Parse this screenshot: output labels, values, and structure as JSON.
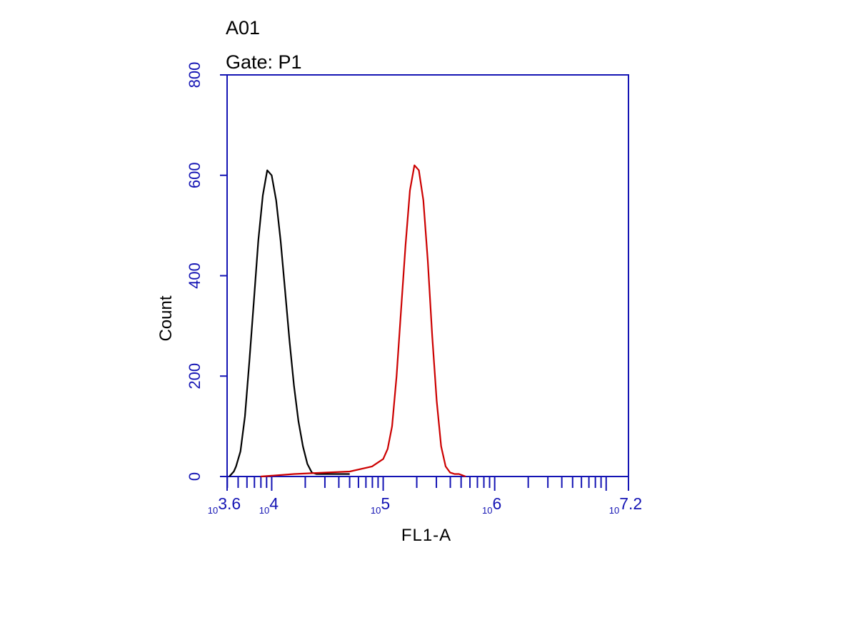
{
  "chart_data": {
    "type": "line",
    "title": "A01",
    "subtitle": "Gate: P1",
    "xlabel": "FL1-A",
    "ylabel": "Count",
    "xscale": "log10",
    "xlim": [
      3.6,
      7.2
    ],
    "ylim": [
      0,
      800
    ],
    "yticks": [
      "0",
      "200",
      "400",
      "600",
      "800"
    ],
    "xtick_labels": [
      {
        "exp": 3.6,
        "base": "10",
        "power": "3.6"
      },
      {
        "exp": 4,
        "base": "10",
        "power": "4"
      },
      {
        "exp": 5,
        "base": "10",
        "power": "5"
      },
      {
        "exp": 6,
        "base": "10",
        "power": "6"
      },
      {
        "exp": 7.2,
        "base": "10",
        "power": "7.2"
      }
    ],
    "grid": false,
    "legend": "none",
    "axis_color": "#1414b4",
    "series": [
      {
        "color": "#000000",
        "x": [
          3.62,
          3.64,
          3.66,
          3.68,
          3.72,
          3.76,
          3.8,
          3.84,
          3.88,
          3.92,
          3.96,
          4.0,
          4.04,
          4.08,
          4.12,
          4.16,
          4.2,
          4.24,
          4.28,
          4.32,
          4.36,
          4.4,
          4.5,
          4.6,
          4.7
        ],
        "y": [
          0,
          5,
          10,
          20,
          50,
          120,
          230,
          350,
          470,
          560,
          610,
          600,
          550,
          470,
          370,
          270,
          180,
          110,
          60,
          25,
          8,
          5,
          5,
          5,
          5
        ]
      },
      {
        "color": "#cc0000",
        "x": [
          3.9,
          4.2,
          4.5,
          4.7,
          4.9,
          5.0,
          5.04,
          5.08,
          5.12,
          5.16,
          5.2,
          5.24,
          5.28,
          5.32,
          5.36,
          5.4,
          5.44,
          5.48,
          5.52,
          5.56,
          5.6,
          5.64,
          5.68,
          5.74
        ],
        "y": [
          0,
          5,
          8,
          10,
          20,
          35,
          55,
          100,
          200,
          330,
          460,
          570,
          620,
          610,
          550,
          430,
          280,
          150,
          60,
          20,
          8,
          5,
          5,
          0
        ]
      }
    ]
  }
}
